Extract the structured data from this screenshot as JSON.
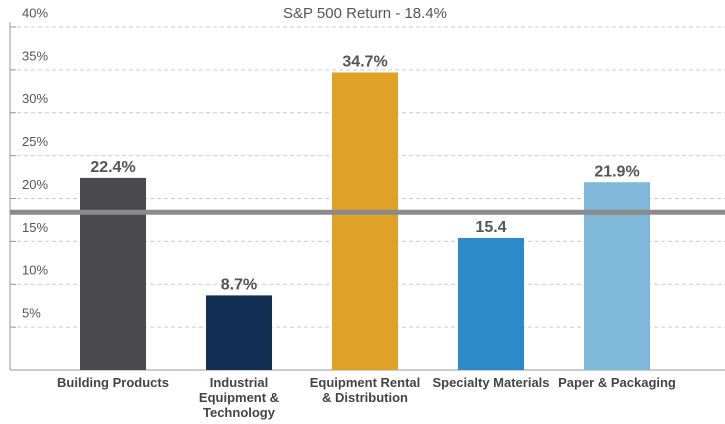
{
  "chart_data": {
    "type": "bar",
    "title": "S&P 500 Return - 18.4%",
    "categories": [
      "Building Products",
      "Industrial Equipment & Technology",
      "Equipment Rental & Distribution",
      "Specialty Materials",
      "Paper & Packaging"
    ],
    "values": [
      22.4,
      8.7,
      34.7,
      15.4,
      21.9
    ],
    "value_labels": [
      "22.4%",
      "8.7%",
      "34.7%",
      "15.4",
      "21.9%"
    ],
    "colors": [
      "#4a4a4d",
      "#132f55",
      "#e0a128",
      "#2a8bc8",
      "#7fb8d9"
    ],
    "reference_line": {
      "value": 18.4,
      "color": "#8a8a8a"
    },
    "ylim": [
      0,
      40
    ],
    "yticks": [
      {
        "value": 5,
        "label": "5%"
      },
      {
        "value": 10,
        "label": "10%"
      },
      {
        "value": 15,
        "label": "15%"
      },
      {
        "value": 20,
        "label": "20%"
      },
      {
        "value": 25,
        "label": "25%"
      },
      {
        "value": 30,
        "label": "30%"
      },
      {
        "value": 35,
        "label": "35%"
      },
      {
        "value": 40,
        "label": "40%"
      }
    ],
    "grid": true
  }
}
